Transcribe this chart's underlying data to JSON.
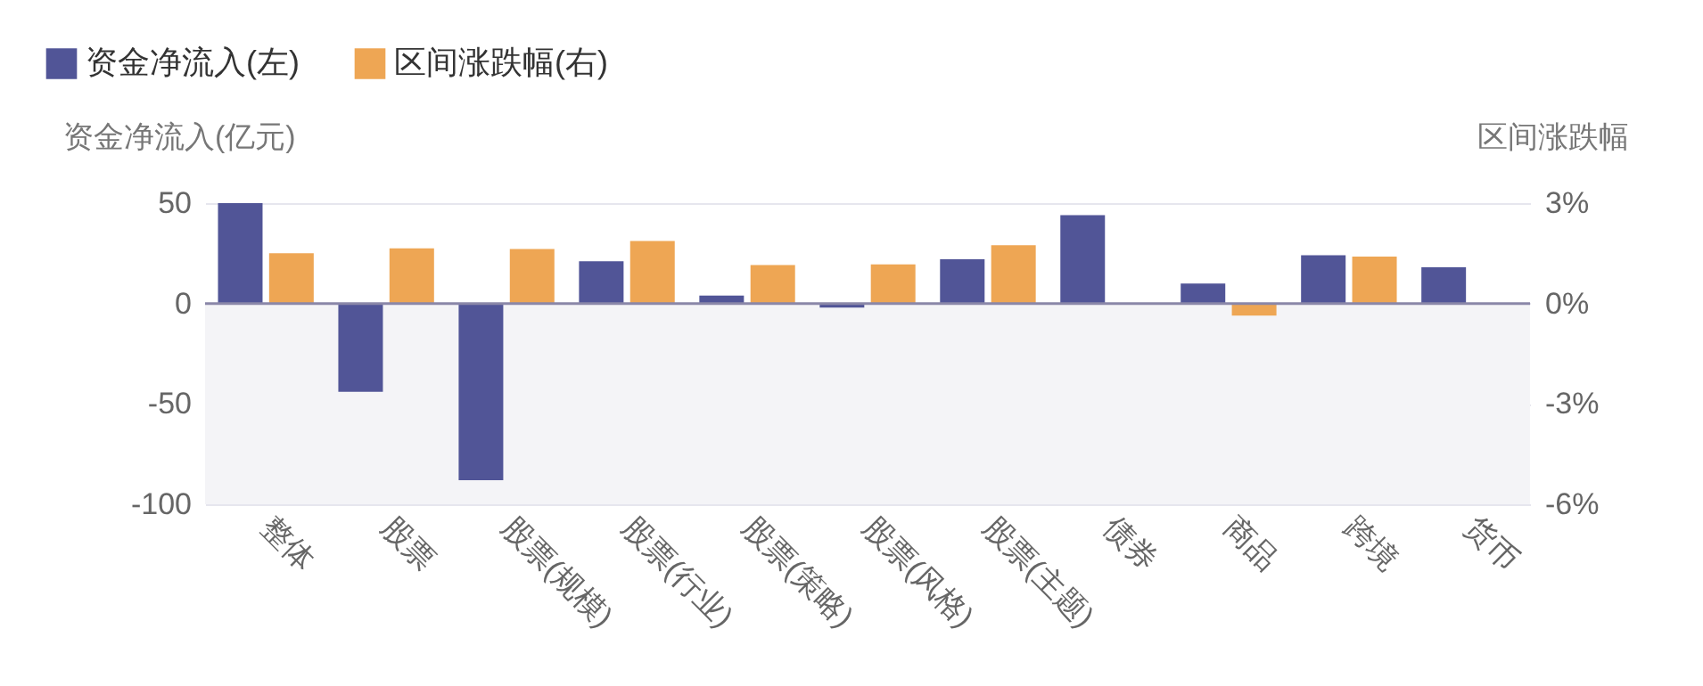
{
  "chart_data": {
    "type": "bar",
    "ylabel": "资金净流入(亿元)",
    "y2label": "区间涨跌幅",
    "categories": [
      "整体",
      "股票",
      "股票(规模)",
      "股票(行业)",
      "股票(策略)",
      "股票(风格)",
      "股票(主题)",
      "债券",
      "商品",
      "跨境",
      "货币"
    ],
    "series": [
      {
        "name": "资金净流入(左)",
        "color": "#515597",
        "values": [
          50,
          -44,
          -88,
          21,
          4,
          -2,
          22,
          44,
          10,
          24,
          18
        ]
      },
      {
        "name": "区间涨跌幅(右)",
        "color": "#eea654",
        "axis": "y2",
        "values": [
          1.5,
          1.65,
          1.63,
          1.87,
          1.15,
          1.17,
          1.74,
          null,
          -0.36,
          1.4,
          null
        ]
      }
    ],
    "ylim": [
      -100,
      50
    ],
    "yticks": [
      -100,
      -50,
      0,
      50
    ],
    "y2lim": [
      -6,
      3
    ],
    "y2ticks": [
      {
        "value": -6,
        "label": "-6%"
      },
      {
        "value": -3,
        "label": "-3%"
      },
      {
        "value": 0,
        "label": "0%"
      },
      {
        "value": 3,
        "label": "3%"
      }
    ],
    "bands": [
      {
        "axis": "y",
        "from": -100,
        "to": 0,
        "color": "#f4f4f7"
      }
    ],
    "grid": "y",
    "legend": "top left"
  }
}
